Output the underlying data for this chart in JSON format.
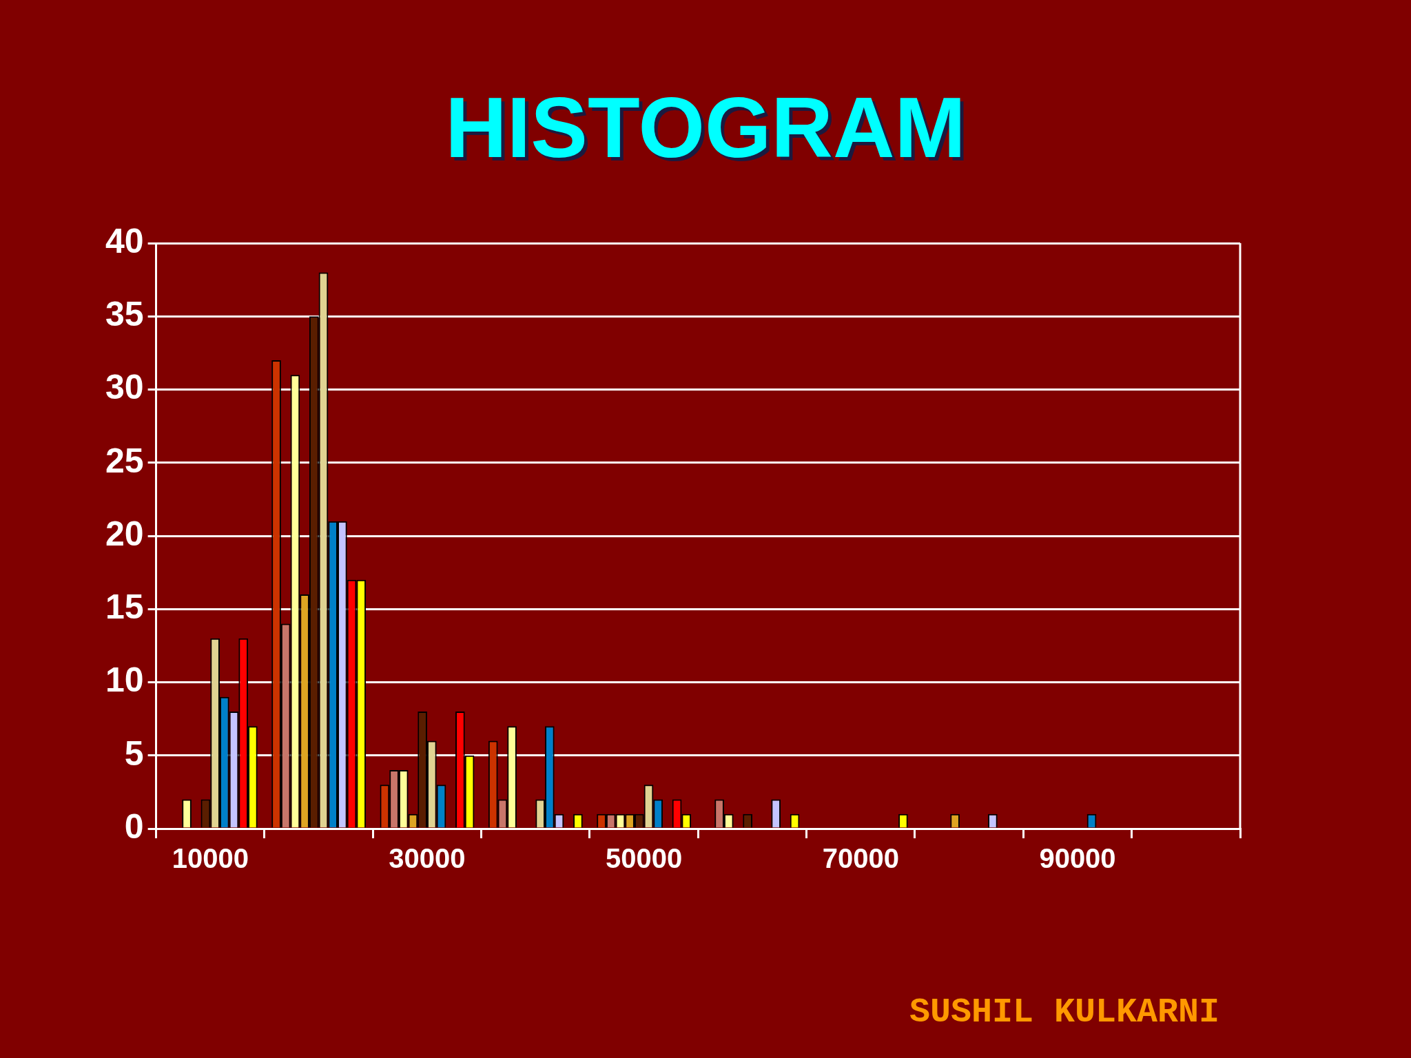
{
  "chart_data": {
    "type": "bar",
    "title": "HISTOGRAM",
    "annotations": [
      "SUSHIL KULKARNI"
    ],
    "categories": [
      "10000",
      null,
      "30000",
      null,
      "50000",
      null,
      "70000",
      null,
      "90000",
      null
    ],
    "series": [
      {
        "color": "#cc3300",
        "values": [
          0,
          32,
          3,
          6,
          1,
          0,
          0,
          0,
          0,
          0
        ]
      },
      {
        "color": "#c8766a",
        "values": [
          0,
          14,
          4,
          2,
          1,
          2,
          0,
          0,
          0,
          0
        ]
      },
      {
        "color": "#ffff99",
        "values": [
          2,
          31,
          4,
          7,
          1,
          1,
          0,
          0,
          0,
          0
        ]
      },
      {
        "color": "#dda522",
        "values": [
          0,
          16,
          1,
          0,
          1,
          0,
          0,
          1,
          0,
          0
        ]
      },
      {
        "color": "#5a1e00",
        "values": [
          2,
          35,
          8,
          0,
          1,
          1,
          0,
          0,
          0,
          0
        ]
      },
      {
        "color": "#e0d392",
        "values": [
          13,
          38,
          6,
          2,
          3,
          0,
          0,
          0,
          0,
          0
        ]
      },
      {
        "color": "#0080c8",
        "values": [
          9,
          21,
          3,
          7,
          2,
          0,
          0,
          0,
          1,
          0
        ]
      },
      {
        "color": "#c4c4ff",
        "values": [
          8,
          21,
          0,
          1,
          0,
          2,
          0,
          1,
          0,
          0
        ]
      },
      {
        "color": "#ff0000",
        "values": [
          13,
          17,
          8,
          0,
          2,
          0,
          0,
          0,
          0,
          0
        ]
      },
      {
        "color": "#ffff00",
        "values": [
          7,
          17,
          5,
          1,
          1,
          1,
          1,
          0,
          0,
          0
        ]
      }
    ],
    "ylim": [
      0,
      40
    ],
    "yticks": [
      0,
      5,
      10,
      15,
      20,
      25,
      30,
      35,
      40
    ],
    "grid": "y",
    "legend": false
  }
}
